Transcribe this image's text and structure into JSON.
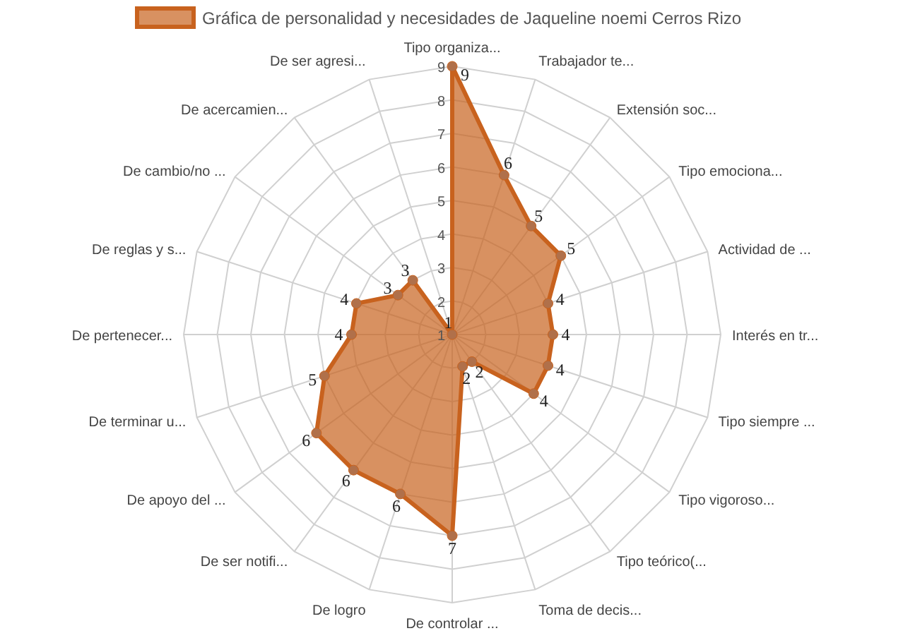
{
  "chart_data": {
    "type": "radar",
    "categories": [
      "Tipo organiza...",
      "Trabajador te...",
      "Extensión soc...",
      "Tipo emociona...",
      "Actividad de ...",
      "Interés en tr...",
      "Tipo siempre ...",
      "Tipo vigoroso...",
      "Tipo teórico(...",
      "Toma de decis...",
      "De controlar ...",
      "De logro",
      "De ser notifi...",
      "De apoyo del ...",
      "De terminar u...",
      "De pertenecer...",
      "De reglas y s...",
      "De cambio/no ...",
      "De acercamien...",
      "De ser agresi..."
    ],
    "series": [
      {
        "name": "Gráfica de personalidad y necesidades de Jaqueline noemi Cerros Rizo",
        "color": "#c8621e",
        "values": [
          9,
          6,
          5,
          5,
          4,
          4,
          4,
          4,
          2,
          2,
          7,
          6,
          6,
          6,
          5,
          4,
          4,
          3,
          3,
          1
        ]
      }
    ],
    "ylim": [
      1,
      9
    ],
    "yticks": [
      1,
      2,
      3,
      4,
      5,
      6,
      7,
      8,
      9
    ],
    "grid": true,
    "legend": "top",
    "marker": "circle",
    "data_labels": true
  }
}
